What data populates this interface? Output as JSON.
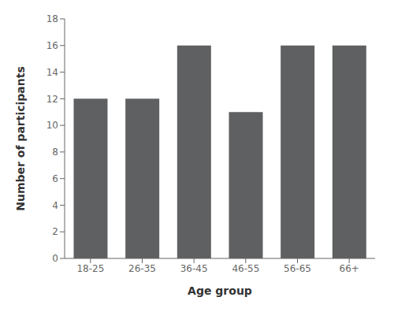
{
  "chart_data": {
    "type": "bar",
    "categories": [
      "18-25",
      "26-35",
      "36-45",
      "46-55",
      "56-65",
      "66+"
    ],
    "values": [
      12,
      12,
      16,
      11,
      16,
      16
    ],
    "color": "#5f6062",
    "xlabel": "Age group",
    "ylabel": "Number of participants",
    "ylim": [
      0,
      18
    ],
    "yticks": [
      0,
      2,
      4,
      6,
      8,
      10,
      12,
      14,
      16,
      18
    ],
    "grid": false
  }
}
